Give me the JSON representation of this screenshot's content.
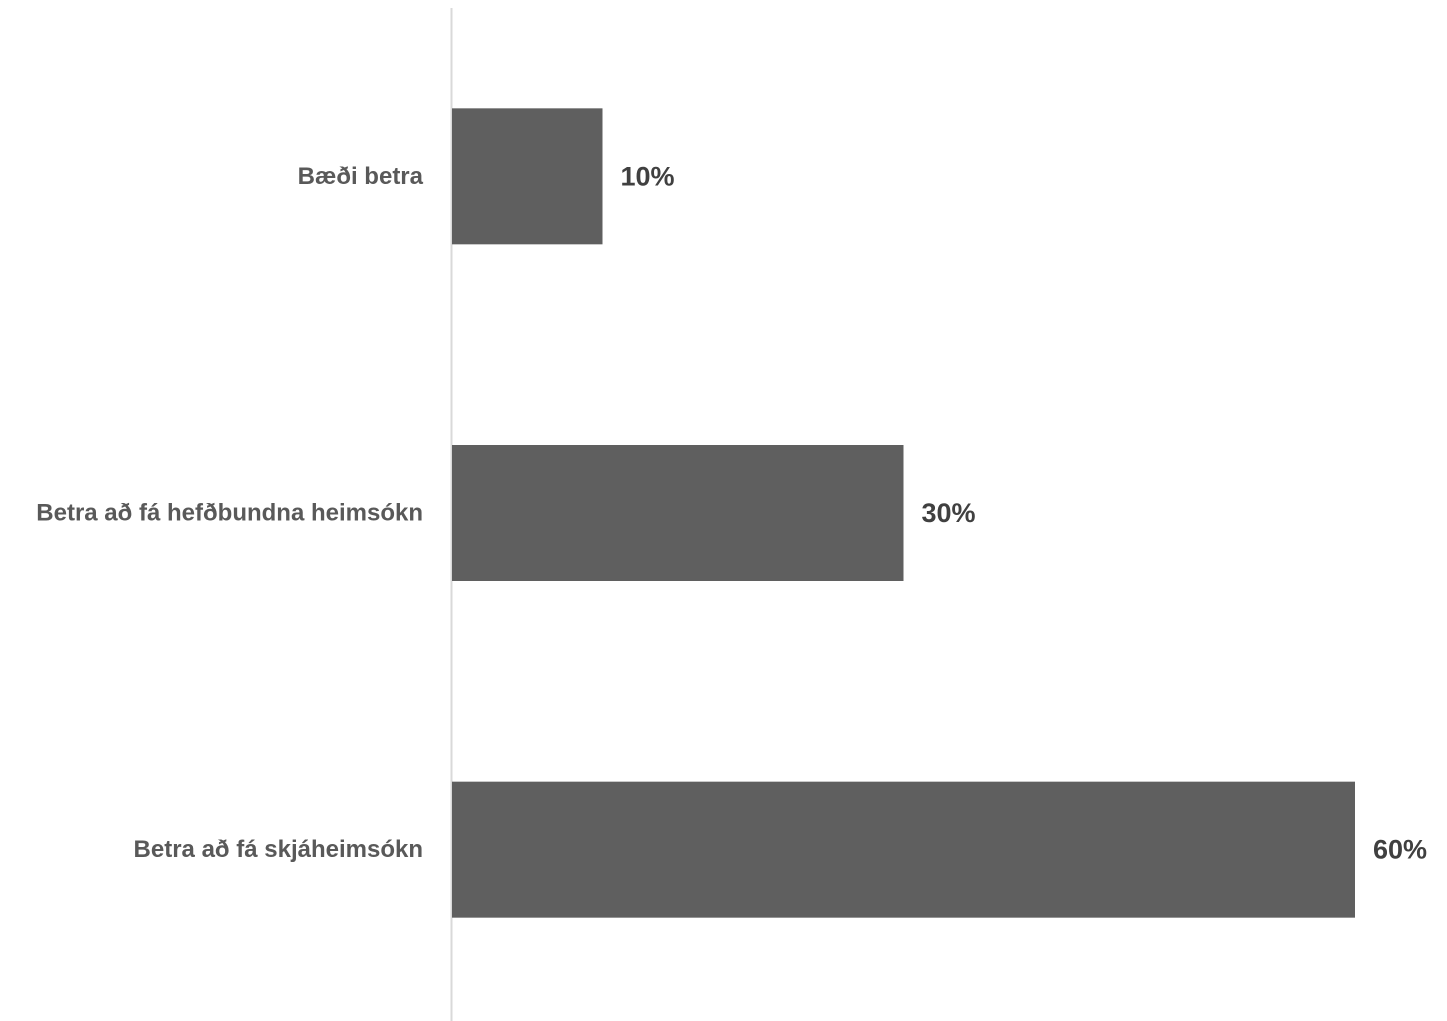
{
  "chart_data": {
    "type": "bar",
    "orientation": "horizontal",
    "categories": [
      "Bæði betra",
      "Betra að fá hefðbundna heimsókn",
      "Betra að fá skjáheimsókn"
    ],
    "values": [
      10,
      30,
      60
    ],
    "data_labels": [
      "10%",
      "30%",
      "60%"
    ],
    "value_unit": "%",
    "xlim": [
      0,
      60
    ],
    "bar_color": "#5f5f5f",
    "axis_color": "#d9d9d9",
    "grid": false,
    "legend": "none",
    "title": "",
    "xlabel": "",
    "ylabel": ""
  }
}
